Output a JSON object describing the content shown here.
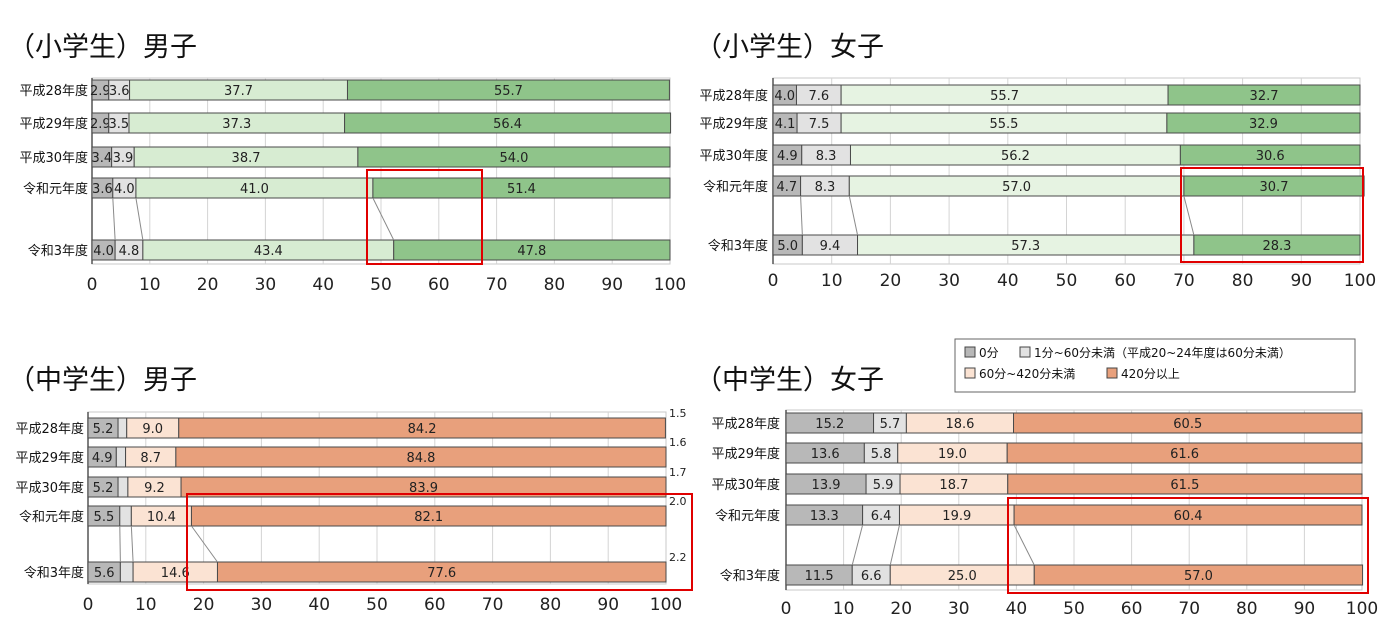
{
  "chart_data": [
    {
      "type": "bar",
      "stacked": true,
      "orientation": "horizontal",
      "title": "（小学生）男子",
      "categories": [
        "平成28年度",
        "平成29年度",
        "平成30年度",
        "令和元年度",
        "令和3年度"
      ],
      "series": [
        {
          "values": [
            2.9,
            2.9,
            3.4,
            3.6,
            4.0
          ]
        },
        {
          "values": [
            3.6,
            3.5,
            3.9,
            4.0,
            4.8
          ]
        },
        {
          "values": [
            37.7,
            37.3,
            38.7,
            41.0,
            43.4
          ]
        },
        {
          "values": [
            55.7,
            56.4,
            54.0,
            51.4,
            47.8
          ]
        }
      ],
      "data_labels": [
        [
          "2.9",
          "3.6",
          "37.7",
          "55.7"
        ],
        [
          "2.9",
          "3.5",
          "37.3",
          "56.4"
        ],
        [
          "3.4",
          "3.9",
          "38.7",
          "54.0"
        ],
        [
          "3.6",
          "4.0",
          "41.0",
          "51.4"
        ],
        [
          "4.0",
          "4.8",
          "43.4",
          "47.8"
        ]
      ],
      "outside_labels": [],
      "xlim": [
        0,
        100
      ],
      "xticks": [
        "0",
        "10",
        "20",
        "30",
        "40",
        "50",
        "60",
        "70",
        "80",
        "90",
        "100"
      ],
      "colors": [
        "#b8b8b8",
        "#e2e2e2",
        "#d7ecd2",
        "#8fc48a"
      ],
      "highlight": "420分以上 令和元年度–令和3年度",
      "legend": []
    },
    {
      "type": "bar",
      "stacked": true,
      "orientation": "horizontal",
      "title": "（小学生）女子",
      "categories": [
        "平成28年度",
        "平成29年度",
        "平成30年度",
        "令和元年度",
        "令和3年度"
      ],
      "series": [
        {
          "values": [
            4.0,
            4.1,
            4.9,
            4.7,
            5.0
          ]
        },
        {
          "values": [
            7.6,
            7.5,
            8.3,
            8.3,
            9.4
          ]
        },
        {
          "values": [
            55.7,
            55.5,
            56.2,
            57.0,
            57.3
          ]
        },
        {
          "values": [
            32.7,
            32.9,
            30.6,
            30.7,
            28.3
          ]
        }
      ],
      "data_labels": [
        [
          "4.0",
          "7.6",
          "55.7",
          "32.7"
        ],
        [
          "4.1",
          "7.5",
          "55.5",
          "32.9"
        ],
        [
          "4.9",
          "8.3",
          "56.2",
          "30.6"
        ],
        [
          "4.7",
          "8.3",
          "57.0",
          "30.7"
        ],
        [
          "5.0",
          "9.4",
          "57.3",
          "28.3"
        ]
      ],
      "outside_labels": [],
      "xlim": [
        0,
        100
      ],
      "xticks": [
        "0",
        "10",
        "20",
        "30",
        "40",
        "50",
        "60",
        "70",
        "80",
        "90",
        "100"
      ],
      "colors": [
        "#b8b8b8",
        "#e2e2e2",
        "#e6f3e2",
        "#8fc48a"
      ],
      "highlight": "420分以上 令和元年度–令和3年度",
      "legend": [
        "0分",
        "1分~60分未満（平成20~24年度は60分未満）",
        "60分~420分未満",
        "420分以上"
      ]
    },
    {
      "type": "bar",
      "stacked": true,
      "orientation": "horizontal",
      "title": "（中学生）男子",
      "categories": [
        "平成28年度",
        "平成29年度",
        "平成30年度",
        "令和元年度",
        "令和3年度"
      ],
      "series": [
        {
          "values": [
            5.2,
            4.9,
            5.2,
            5.5,
            5.6
          ]
        },
        {
          "values": [
            1.5,
            1.6,
            1.7,
            2.0,
            2.2
          ]
        },
        {
          "values": [
            9.0,
            8.7,
            9.2,
            10.4,
            14.6
          ]
        },
        {
          "values": [
            84.2,
            84.8,
            83.9,
            82.1,
            77.6
          ]
        }
      ],
      "data_labels": [
        [
          "5.2",
          "",
          "9.0",
          "84.2"
        ],
        [
          "4.9",
          "",
          "8.7",
          "84.8"
        ],
        [
          "5.2",
          "",
          "9.2",
          "83.9"
        ],
        [
          "5.5",
          "",
          "10.4",
          "82.1"
        ],
        [
          "5.6",
          "",
          "14.6",
          "77.6"
        ]
      ],
      "outside_labels": [
        "1.5",
        "1.6",
        "1.7",
        "2.0",
        "2.2"
      ],
      "xlim": [
        0,
        100
      ],
      "xticks": [
        "0",
        "10",
        "20",
        "30",
        "40",
        "50",
        "60",
        "70",
        "80",
        "90",
        "100"
      ],
      "colors": [
        "#b8b8b8",
        "#e2e2e2",
        "#fbe3d3",
        "#e8a07c"
      ],
      "highlight": "420分以上 令和元年度–令和3年度",
      "legend": []
    },
    {
      "type": "bar",
      "stacked": true,
      "orientation": "horizontal",
      "title": "（中学生）女子",
      "categories": [
        "平成28年度",
        "平成29年度",
        "平成30年度",
        "令和元年度",
        "令和3年度"
      ],
      "series": [
        {
          "values": [
            15.2,
            13.6,
            13.9,
            13.3,
            11.5
          ]
        },
        {
          "values": [
            5.7,
            5.8,
            5.9,
            6.4,
            6.6
          ]
        },
        {
          "values": [
            18.6,
            19.0,
            18.7,
            19.9,
            25.0
          ]
        },
        {
          "values": [
            60.5,
            61.6,
            61.5,
            60.4,
            57.0
          ]
        }
      ],
      "data_labels": [
        [
          "15.2",
          "5.7",
          "18.6",
          "60.5"
        ],
        [
          "13.6",
          "5.8",
          "19.0",
          "61.6"
        ],
        [
          "13.9",
          "5.9",
          "18.7",
          "61.5"
        ],
        [
          "13.3",
          "6.4",
          "19.9",
          "60.4"
        ],
        [
          "11.5",
          "6.6",
          "25.0",
          "57.0"
        ]
      ],
      "outside_labels": [],
      "xlim": [
        0,
        100
      ],
      "xticks": [
        "0",
        "10",
        "20",
        "30",
        "40",
        "50",
        "60",
        "70",
        "80",
        "90",
        "100"
      ],
      "colors": [
        "#b8b8b8",
        "#e2e2e2",
        "#fbe3d3",
        "#e8a07c"
      ],
      "highlight": "420分以上 令和元年度–令和3年度",
      "legend": [
        "0分",
        "1分~60分未満（平成20~24年度は60分未満）",
        "60分~420分未満",
        "420分以上"
      ]
    }
  ]
}
